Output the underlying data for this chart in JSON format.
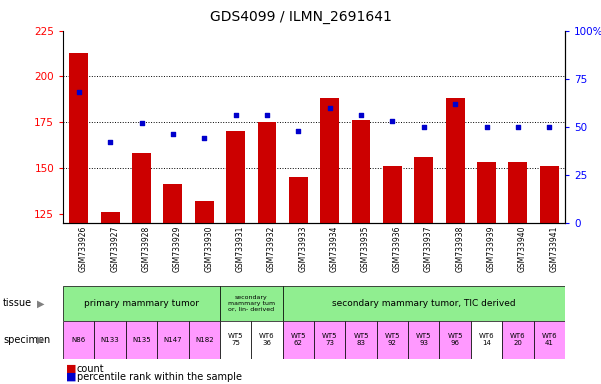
{
  "title": "GDS4099 / ILMN_2691641",
  "samples": [
    "GSM733926",
    "GSM733927",
    "GSM733928",
    "GSM733929",
    "GSM733930",
    "GSM733931",
    "GSM733932",
    "GSM733933",
    "GSM733934",
    "GSM733935",
    "GSM733936",
    "GSM733937",
    "GSM733938",
    "GSM733939",
    "GSM733940",
    "GSM733941"
  ],
  "counts": [
    213,
    126,
    158,
    141,
    132,
    170,
    175,
    145,
    188,
    176,
    151,
    156,
    188,
    153,
    153,
    151
  ],
  "percentile": [
    68,
    42,
    52,
    46,
    44,
    56,
    56,
    48,
    60,
    56,
    53,
    50,
    62,
    50,
    50,
    50
  ],
  "ylim_left": [
    120,
    225
  ],
  "ylim_right": [
    0,
    100
  ],
  "yticks_left": [
    125,
    150,
    175,
    200,
    225
  ],
  "yticks_right": [
    0,
    25,
    50,
    75,
    100
  ],
  "bar_color": "#cc0000",
  "dot_color": "#0000cc",
  "tissue_primary_label": "primary mammary tumor",
  "tissue_secondary_lin_label": "secondary\nmammary tum\nor, lin- derived",
  "tissue_secondary_tic_label": "secondary mammary tumor, TIC derived",
  "tissue_color": "#90ee90",
  "specimen_labels": [
    "N86",
    "N133",
    "N135",
    "N147",
    "N182",
    "WT5\n75",
    "WT6\n36",
    "WT5\n62",
    "WT5\n73",
    "WT5\n83",
    "WT5\n92",
    "WT5\n93",
    "WT5\n96",
    "WT6\n14",
    "WT6\n20",
    "WT6\n41"
  ],
  "specimen_pink_indices": [
    0,
    1,
    2,
    3,
    4,
    7,
    8,
    9,
    10,
    11,
    12,
    14,
    15
  ],
  "specimen_white_indices": [
    5,
    6,
    13
  ],
  "specimen_pink_color": "#ff99ff",
  "specimen_white_color": "#ffffff",
  "xticklabel_bg": "#cccccc",
  "legend_count_label": "count",
  "legend_pct_label": "percentile rank within the sample",
  "tissue_label": "tissue",
  "specimen_label": "specimen"
}
